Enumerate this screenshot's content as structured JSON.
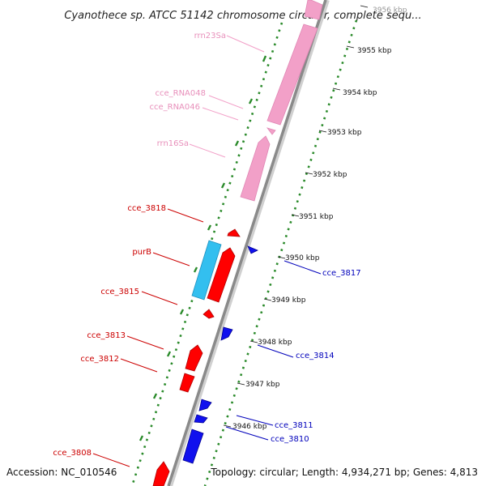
{
  "title": "Cyanothece sp. ATCC 51142 chromosome circular, complete sequ...",
  "footer": {
    "accession": "Accession: NC_010546",
    "topology": "Topology: circular; Length: 4,934,271 bp; Genes: 4,813"
  },
  "colors": {
    "rrna": "#f2a0c8",
    "rrna_label": "#e890bb",
    "forward_gene": "#ff0000",
    "forward_label": "#cc0000",
    "reverse_gene": "#1010ee",
    "reverse_label": "#0000bb",
    "highlight_gene": "#33bfef",
    "backbone": "#8a8a8a",
    "tick": "#2a8a2a"
  },
  "kbp_ticks": [
    "3946 kbp",
    "3947 kbp",
    "3948 kbp",
    "3949 kbp",
    "3950 kbp",
    "3951 kbp",
    "3952 kbp",
    "3953 kbp",
    "3954 kbp",
    "3955 kbp",
    "3956 kbp"
  ],
  "left_labels": [
    {
      "text": "rrn23Sa",
      "type": "rrna"
    },
    {
      "text": "cce_RNA048",
      "type": "rrna"
    },
    {
      "text": "cce_RNA046",
      "type": "rrna"
    },
    {
      "text": "rrn16Sa",
      "type": "rrna"
    },
    {
      "text": "cce_3818",
      "type": "forward"
    },
    {
      "text": "purB",
      "type": "forward"
    },
    {
      "text": "cce_3815",
      "type": "forward"
    },
    {
      "text": "cce_3813",
      "type": "forward"
    },
    {
      "text": "cce_3812",
      "type": "forward"
    },
    {
      "text": "cce_3808",
      "type": "forward"
    }
  ],
  "right_labels": [
    {
      "text": "cce_3817",
      "type": "reverse"
    },
    {
      "text": "cce_3814",
      "type": "reverse"
    },
    {
      "text": "cce_3811",
      "type": "reverse"
    },
    {
      "text": "cce_3810",
      "type": "reverse"
    }
  ]
}
